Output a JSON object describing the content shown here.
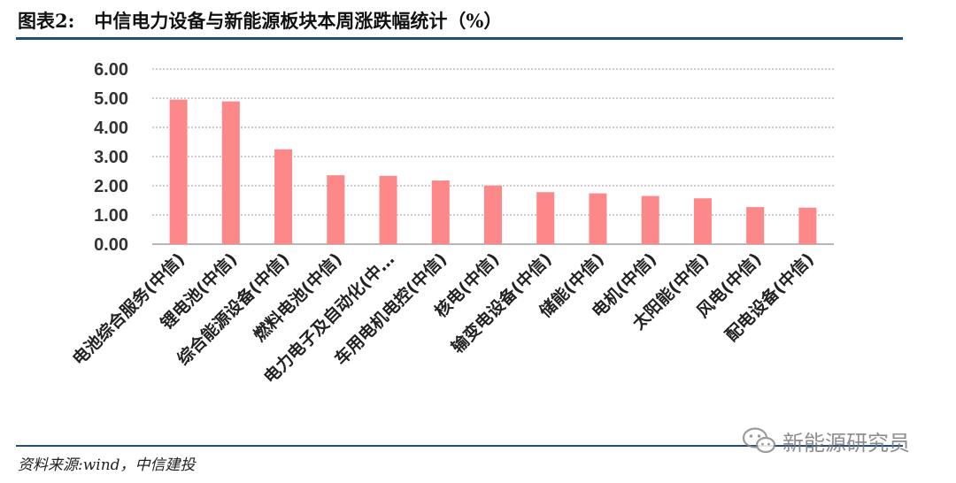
{
  "header": {
    "figure_number": "图表2:",
    "title": "中信电力设备与新能源板块本周涨跌幅统计（%）"
  },
  "footer": {
    "source": "资料来源:wind，中信建投",
    "watermark_text": "新能源研究员",
    "watermark_icon": "wechat-icon"
  },
  "colors": {
    "bar": "#fd888a",
    "rule": "#1f4e79",
    "grid": "#9a9a9a"
  },
  "chart_data": {
    "type": "bar",
    "title": "",
    "xlabel": "",
    "ylabel": "",
    "ylim": [
      0,
      6
    ],
    "yticks": [
      "0.00",
      "1.00",
      "2.00",
      "3.00",
      "4.00",
      "5.00",
      "6.00"
    ],
    "grid": "horizontal-dotted",
    "categories": [
      "电池综合服务(中信)",
      "锂电池(中信)",
      "综合能源设备(中信)",
      "燃料电池(中信)",
      "电力电子及自动化(中…",
      "车用电机电控(中信)",
      "核电(中信)",
      "输变电设备(中信)",
      "储能(中信)",
      "电机(中信)",
      "太阳能(中信)",
      "风电(中信)",
      "配电设备(中信)"
    ],
    "values": [
      4.95,
      4.89,
      3.25,
      2.36,
      2.34,
      2.18,
      2.01,
      1.78,
      1.74,
      1.65,
      1.57,
      1.27,
      1.25
    ]
  }
}
